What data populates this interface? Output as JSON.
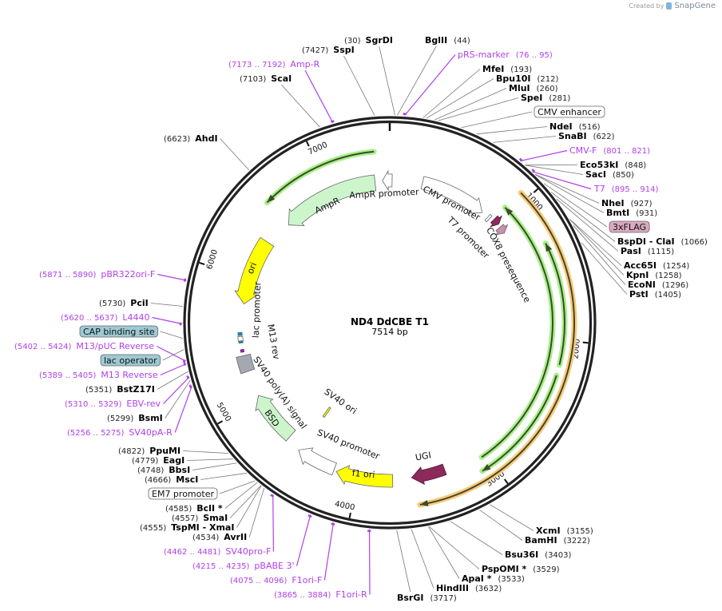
{
  "credit": {
    "prefix": "Created by",
    "brand": "SnapGene"
  },
  "plasmid": {
    "name": "ND4 DdCBE T1",
    "length_label": "7514 bp",
    "length": 7514
  },
  "ticks": [
    "1000",
    "2000",
    "3000",
    "4000",
    "5000",
    "6000",
    "7000"
  ],
  "enzymes": [
    {
      "name": "SgrDI",
      "pos": "(30)",
      "bp": 30
    },
    {
      "name": "BglII",
      "pos": "(44)",
      "bp": 44
    },
    {
      "name": "SspI",
      "pos": "(7427)",
      "bp": 7427
    },
    {
      "name": "ScaI",
      "pos": "(7103)",
      "bp": 7103
    },
    {
      "name": "MfeI",
      "pos": "(193)",
      "bp": 193
    },
    {
      "name": "Bpu10I",
      "pos": "(212)",
      "bp": 212
    },
    {
      "name": "MluI",
      "pos": "(260)",
      "bp": 260
    },
    {
      "name": "SpeI",
      "pos": "(281)",
      "bp": 281
    },
    {
      "name": "NdeI",
      "pos": "(516)",
      "bp": 516
    },
    {
      "name": "SnaBI",
      "pos": "(622)",
      "bp": 622
    },
    {
      "name": "Eco53kI",
      "pos": "(848)",
      "bp": 848
    },
    {
      "name": "SacI",
      "pos": "(850)",
      "bp": 850
    },
    {
      "name": "NheI",
      "pos": "(927)",
      "bp": 927
    },
    {
      "name": "BmtI",
      "pos": "(931)",
      "bp": 931
    },
    {
      "name": "BspDI  - ClaI",
      "pos": "(1066)",
      "bp": 1066
    },
    {
      "name": "PasI",
      "pos": "(1115)",
      "bp": 1115
    },
    {
      "name": "Acc65I",
      "pos": "(1254)",
      "bp": 1254
    },
    {
      "name": "KpnI",
      "pos": "(1258)",
      "bp": 1258
    },
    {
      "name": "EcoNI",
      "pos": "(1296)",
      "bp": 1296
    },
    {
      "name": "PstI",
      "pos": "(1405)",
      "bp": 1405
    },
    {
      "name": "XcmI",
      "pos": "(3155)",
      "bp": 3155
    },
    {
      "name": "BamHI",
      "pos": "(3222)",
      "bp": 3222
    },
    {
      "name": "Bsu36I",
      "pos": "(3403)",
      "bp": 3403
    },
    {
      "name": "PspOMI *",
      "pos": "(3529)",
      "bp": 3529
    },
    {
      "name": "ApaI *",
      "pos": "(3533)",
      "bp": 3533
    },
    {
      "name": "HindIII",
      "pos": "(3632)",
      "bp": 3632
    },
    {
      "name": "BsrGI",
      "pos": "(3717)",
      "bp": 3717
    },
    {
      "name": "AvrII",
      "pos": "(4534)",
      "bp": 4534
    },
    {
      "name": "TspMI  - XmaI",
      "pos": "(4555)",
      "bp": 4555
    },
    {
      "name": "SmaI",
      "pos": "(4557)",
      "bp": 4557
    },
    {
      "name": "BclI *",
      "pos": "(4585)",
      "bp": 4585
    },
    {
      "name": "MscI",
      "pos": "(4666)",
      "bp": 4666
    },
    {
      "name": "BbsI",
      "pos": "(4748)",
      "bp": 4748
    },
    {
      "name": "EagI",
      "pos": "(4779)",
      "bp": 4779
    },
    {
      "name": "PpuMI",
      "pos": "(4822)",
      "bp": 4822
    },
    {
      "name": "BsmI",
      "pos": "(5299)",
      "bp": 5299
    },
    {
      "name": "BstZ17I",
      "pos": "(5351)",
      "bp": 5351
    },
    {
      "name": "PciI",
      "pos": "(5730)",
      "bp": 5730
    },
    {
      "name": "AhdI",
      "pos": "(6623)",
      "bp": 6623
    }
  ],
  "primers": [
    {
      "name": "Amp-R",
      "range": "(7173 .. 7192)",
      "start": 7173,
      "end": 7192
    },
    {
      "name": "pRS-marker",
      "range": "(76 .. 95)",
      "start": 76,
      "end": 95
    },
    {
      "name": "CMV-F",
      "range": "(801 .. 821)",
      "start": 801,
      "end": 821
    },
    {
      "name": "T7",
      "range": "(895 .. 914)",
      "start": 895,
      "end": 914
    },
    {
      "name": "pBR322ori-F",
      "range": "(5871 .. 5890)",
      "start": 5871,
      "end": 5890
    },
    {
      "name": "L4440",
      "range": "(5620 .. 5637)",
      "start": 5620,
      "end": 5637
    },
    {
      "name": "M13/pUC Reverse",
      "range": "(5402 .. 5424)",
      "start": 5402,
      "end": 5424
    },
    {
      "name": "M13 Reverse",
      "range": "(5389 .. 5405)",
      "start": 5389,
      "end": 5405
    },
    {
      "name": "EBV-rev",
      "range": "(5310 .. 5329)",
      "start": 5310,
      "end": 5329
    },
    {
      "name": "SV40pA-R",
      "range": "(5256 .. 5275)",
      "start": 5256,
      "end": 5275
    },
    {
      "name": "SV40pro-F",
      "range": "(4462 .. 4481)",
      "start": 4462,
      "end": 4481
    },
    {
      "name": "pBABE 3'",
      "range": "(4215 .. 4235)",
      "start": 4215,
      "end": 4235
    },
    {
      "name": "F1ori-F",
      "range": "(4075 .. 4096)",
      "start": 4075,
      "end": 4096
    },
    {
      "name": "F1ori-R",
      "range": "(3865 .. 3884)",
      "start": 3865,
      "end": 3884
    }
  ],
  "boxed_features": [
    {
      "name": "CMV enhancer",
      "bp": 420,
      "color": "#ffffff"
    },
    {
      "name": "3xFLAG",
      "bp": 1000,
      "color": "#d9a9bf"
    },
    {
      "name": "EM7 promoter",
      "bp": 4600,
      "color": "#ffffff"
    },
    {
      "name": "CAP binding site",
      "bp": 5545,
      "color": "#9ec9d4"
    },
    {
      "name": "lac operator",
      "bp": 5480,
      "color": "#9ec9d4"
    }
  ],
  "features": [
    {
      "name": "AmpR",
      "start": 6554,
      "end": 7389,
      "dir": "ccw",
      "color": "#ccf5cc"
    },
    {
      "name": "AmpR promoter",
      "start": 7452,
      "end": 20,
      "dir": "ccw",
      "color": "#ffffff"
    },
    {
      "name": "CMV promoter",
      "start": 275,
      "end": 835,
      "dir": "cw",
      "color": "#ffffff"
    },
    {
      "name": "T7 promoter",
      "start": 895,
      "end": 914,
      "dir": "none",
      "color": "#ffffff"
    },
    {
      "name": "COX8 presequence",
      "start": 945,
      "end": 1000,
      "dir": "cw",
      "color": "#8c2a5c"
    },
    {
      "name": "3xFLAG",
      "start": 1025,
      "end": 1085,
      "dir": "cw",
      "color": "#c98fae"
    },
    {
      "name": "ori",
      "start": 5788,
      "end": 6332,
      "dir": "ccw",
      "color": "#ffff00"
    },
    {
      "name": "lac promoter",
      "start": 5490,
      "end": 5525,
      "dir": "none",
      "color": "#ffffff"
    },
    {
      "name": "M13 rev",
      "start": 5400,
      "end": 5420,
      "dir": "none",
      "color": "#a020f0"
    },
    {
      "name": "SV40 poly(A) signal",
      "start": 5240,
      "end": 5370,
      "dir": "none",
      "color": "#a4a8b0"
    },
    {
      "name": "BSD",
      "start": 4617,
      "end": 5030,
      "dir": "cw",
      "color": "#ccf5cc"
    },
    {
      "name": "SV40 ori",
      "start": 4480,
      "end": 4500,
      "dir": "none",
      "color": "#ffff00"
    },
    {
      "name": "SV40 promoter",
      "start": 4190,
      "end": 4500,
      "dir": "cw",
      "color": "#ffffff"
    },
    {
      "name": "f1 ori",
      "start": 3735,
      "end": 4170,
      "dir": "cw",
      "color": "#ffff00"
    },
    {
      "name": "UGI",
      "start": 3330,
      "end": 3590,
      "dir": "cw",
      "color": "#8c2a5c"
    }
  ],
  "orfs": [
    {
      "start": 945,
      "end": 3560,
      "dir": "cw",
      "color": "#ffc97a"
    },
    {
      "start": 940,
      "end": 3040,
      "dir": "ccw",
      "color": "#a8f08a"
    },
    {
      "start": 1315,
      "end": 2170,
      "dir": "ccw",
      "color": "#a8f08a"
    },
    {
      "start": 2245,
      "end": 3090,
      "dir": "cw",
      "color": "#a8f08a"
    },
    {
      "start": 6562,
      "end": 7403,
      "dir": "ccw",
      "color": "#a8f08a"
    }
  ]
}
